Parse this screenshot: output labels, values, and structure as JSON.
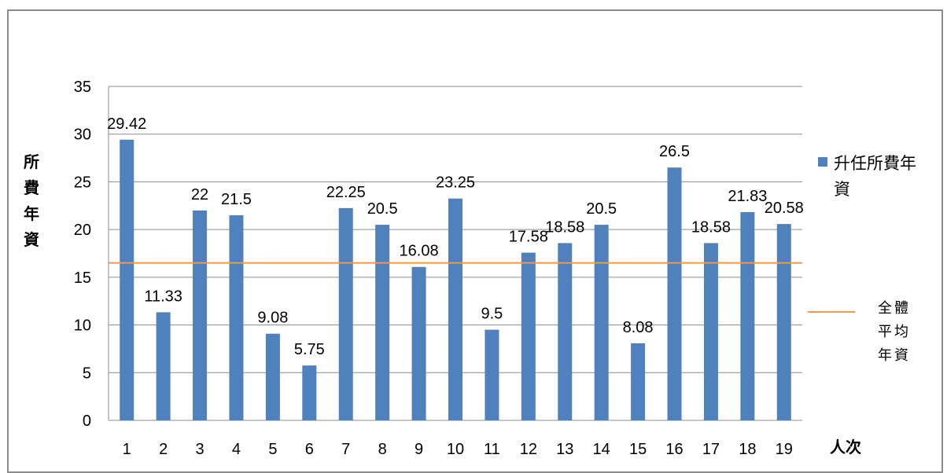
{
  "chart_data": {
    "type": "bar",
    "categories": [
      "1",
      "2",
      "3",
      "4",
      "5",
      "6",
      "7",
      "8",
      "9",
      "10",
      "11",
      "12",
      "13",
      "14",
      "15",
      "16",
      "17",
      "18",
      "19"
    ],
    "series": [
      {
        "name": "升任所費年資",
        "values": [
          29.42,
          11.33,
          22,
          21.5,
          9.08,
          5.75,
          22.25,
          20.5,
          16.08,
          23.25,
          9.5,
          17.58,
          18.58,
          20.5,
          8.08,
          26.5,
          18.58,
          21.83,
          20.58
        ],
        "color": "#4f81bd"
      }
    ],
    "reference_line": {
      "name": "全體平均年資",
      "value": 16.5,
      "color": "#f79646"
    },
    "ylabel": "所費年資",
    "xlabel": "人次",
    "ylim": [
      0,
      35
    ],
    "yticks": [
      0,
      5,
      10,
      15,
      20,
      25,
      30,
      35
    ],
    "grid": true,
    "legend_position": "right",
    "data_labels": [
      "29.42",
      "11.33",
      "22",
      "21.5",
      "9.08",
      "5.75",
      "22.25",
      "20.5",
      "16.08",
      "23.25",
      "9.5",
      "17.58",
      "18.58",
      "20.5",
      "8.08",
      "26.5",
      "18.58",
      "21.83",
      "20.58"
    ]
  }
}
